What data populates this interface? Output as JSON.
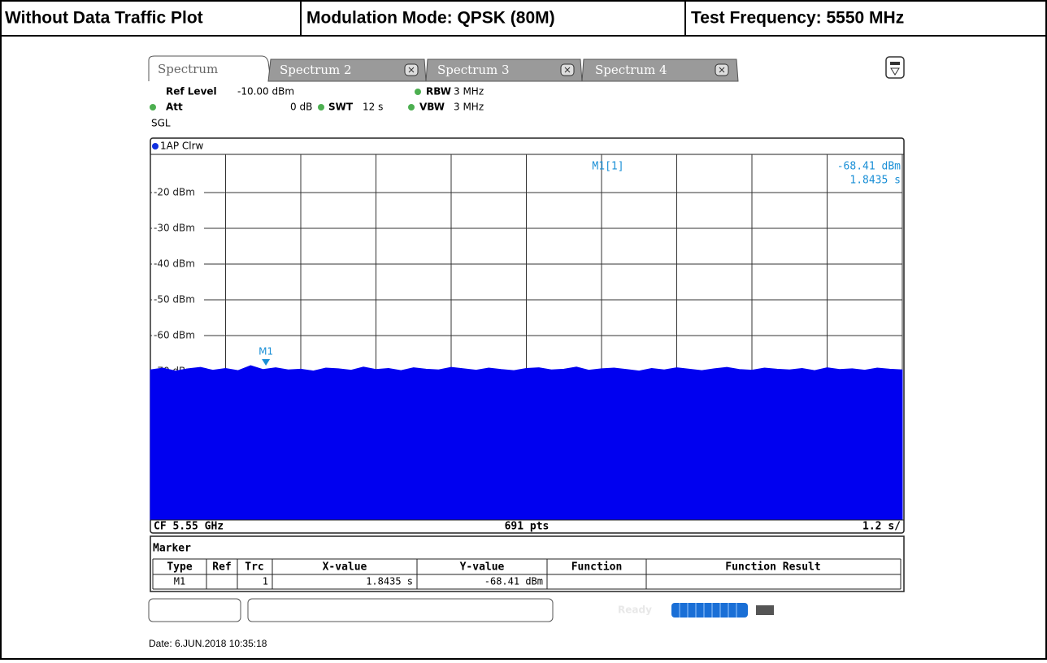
{
  "header": {
    "cells": [
      "Without Data Traffic Plot",
      "Modulation Mode: QPSK (80M)",
      "Test Frequency: 5550 MHz"
    ]
  },
  "tabs": [
    "Spectrum",
    "Spectrum 2",
    "Spectrum 3",
    "Spectrum 4"
  ],
  "settings": {
    "ref_level": {
      "label": "Ref Level",
      "value": "-10.00 dBm"
    },
    "att": {
      "label": "Att",
      "value": "0 dB"
    },
    "swt": {
      "label": "SWT",
      "value": "12 s"
    },
    "rbw": {
      "label": "RBW",
      "value": "3 MHz"
    },
    "vbw": {
      "label": "VBW",
      "value": "3 MHz"
    },
    "mode": "SGL"
  },
  "chart_data": {
    "type": "area",
    "trace_label": "1AP Clrw",
    "ylim": [
      -110,
      -10
    ],
    "yticks": [
      {
        "value": -20,
        "label": "-20 dBm"
      },
      {
        "value": -30,
        "label": "-30 dBm"
      },
      {
        "value": -40,
        "label": "-40 dBm"
      },
      {
        "value": -50,
        "label": "-50 dBm"
      },
      {
        "value": -60,
        "label": "-60 dBm"
      },
      {
        "value": -70,
        "label": "-70 dBm"
      }
    ],
    "xlim": [
      0,
      12
    ],
    "xticks": [
      0,
      1.2,
      2.4,
      3.6,
      4.8,
      6,
      7.2,
      8.4,
      9.6,
      10.8,
      12
    ],
    "grid": true,
    "series": [
      {
        "name": "1AP Clrw",
        "color": "#0000f0",
        "x": [
          0,
          0.2,
          0.4,
          0.6,
          0.8,
          1,
          1.2,
          1.4,
          1.6,
          1.8,
          2,
          2.2,
          2.4,
          2.6,
          2.8,
          3,
          3.2,
          3.4,
          3.6,
          3.8,
          4,
          4.2,
          4.4,
          4.6,
          4.8,
          5,
          5.2,
          5.4,
          5.6,
          5.8,
          6,
          6.2,
          6.4,
          6.6,
          6.8,
          7,
          7.2,
          7.4,
          7.6,
          7.8,
          8,
          8.2,
          8.4,
          8.6,
          8.8,
          9,
          9.2,
          9.4,
          9.6,
          9.8,
          10,
          10.2,
          10.4,
          10.6,
          10.8,
          11,
          11.2,
          11.4,
          11.6,
          11.8,
          12
        ],
        "values": [
          -69.6,
          -69.1,
          -69.9,
          -69.3,
          -68.9,
          -69.7,
          -69.2,
          -69.8,
          -68.41,
          -69.5,
          -69.0,
          -69.6,
          -69.4,
          -69.9,
          -69.1,
          -69.3,
          -69.7,
          -68.8,
          -69.5,
          -69.2,
          -69.8,
          -69.0,
          -69.4,
          -69.6,
          -68.9,
          -69.3,
          -69.7,
          -69.1,
          -69.5,
          -69.8,
          -69.2,
          -69.0,
          -69.6,
          -69.4,
          -68.8,
          -69.7,
          -69.3,
          -69.1,
          -69.5,
          -69.9,
          -69.2,
          -69.6,
          -69.0,
          -69.4,
          -69.8,
          -69.3,
          -68.9,
          -69.5,
          -69.7,
          -69.1,
          -69.4,
          -69.6,
          -69.2,
          -69.8,
          -69.0,
          -69.5,
          -69.3,
          -69.7,
          -69.1,
          -69.4,
          -69.6
        ]
      }
    ],
    "marker": {
      "label": "M1",
      "readout_label": "M1[1]",
      "x": 1.8435,
      "y": -68.41,
      "value_labels": [
        "-68.41 dBm",
        "1.8435 s"
      ],
      "color": "#1a8fd6"
    },
    "footer": {
      "center_freq": "CF 5.55 GHz",
      "points": "691 pts",
      "sweep_per_div": "1.2 s/"
    }
  },
  "marker_table": {
    "title": "Marker",
    "columns": [
      "Type",
      "Ref",
      "Trc",
      "X-value",
      "Y-value",
      "Function",
      "Function Result"
    ],
    "rows": [
      {
        "type": "M1",
        "trc": "1",
        "x_value": "1.8435 s",
        "y_value": "-68.41 dBm"
      }
    ]
  },
  "status": "Ready",
  "date": "Date: 6.JUN.2018  10:35:18"
}
